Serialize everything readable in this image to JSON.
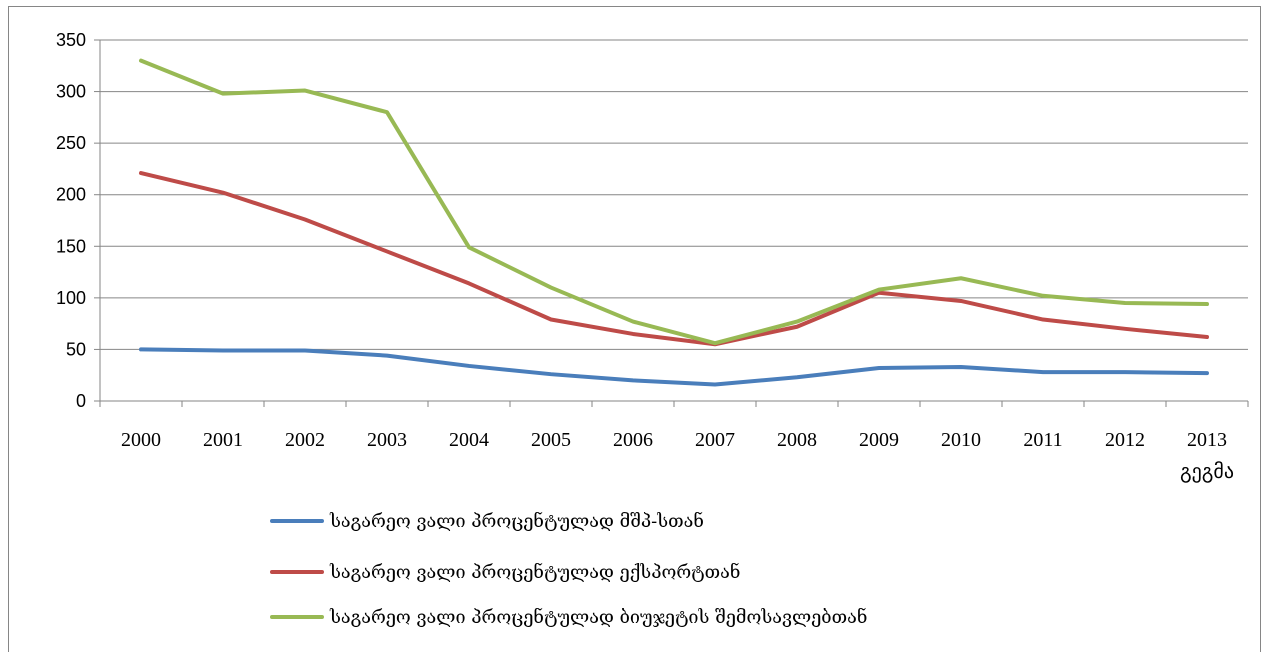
{
  "chart_data": {
    "type": "line",
    "title": "",
    "xlabel": "",
    "ylabel": "",
    "categories": [
      "2000",
      "2001",
      "2002",
      "2003",
      "2004",
      "2005",
      "2006",
      "2007",
      "2008",
      "2009",
      "2010",
      "2011",
      "2012",
      "2013"
    ],
    "category_sublabels": [
      "",
      "",
      "",
      "",
      "",
      "",
      "",
      "",
      "",
      "",
      "",
      "",
      "",
      "გეგმა"
    ],
    "ylim": [
      0,
      350
    ],
    "yticks": [
      0,
      50,
      100,
      150,
      200,
      250,
      300,
      350
    ],
    "grid": true,
    "legend_position": "bottom",
    "series": [
      {
        "name": "საგარეო ვალი პროცენტულად მშპ-სთან",
        "color": "#4a7ebb",
        "values": [
          50,
          49,
          49,
          44,
          34,
          26,
          20,
          16,
          23,
          32,
          33,
          28,
          28,
          27
        ]
      },
      {
        "name": "საგარეო ვალი პროცენტულად ექსპორტთან",
        "color": "#be4b48",
        "values": [
          221,
          202,
          176,
          145,
          114,
          79,
          65,
          55,
          72,
          105,
          97,
          79,
          70,
          62
        ]
      },
      {
        "name": "საგარეო ვალი პროცენტულად ბიუჯეტის შემოსავლებთან",
        "color": "#98b954",
        "values": [
          330,
          298,
          301,
          280,
          149,
          110,
          77,
          56,
          77,
          108,
          119,
          102,
          95,
          94
        ]
      }
    ]
  }
}
